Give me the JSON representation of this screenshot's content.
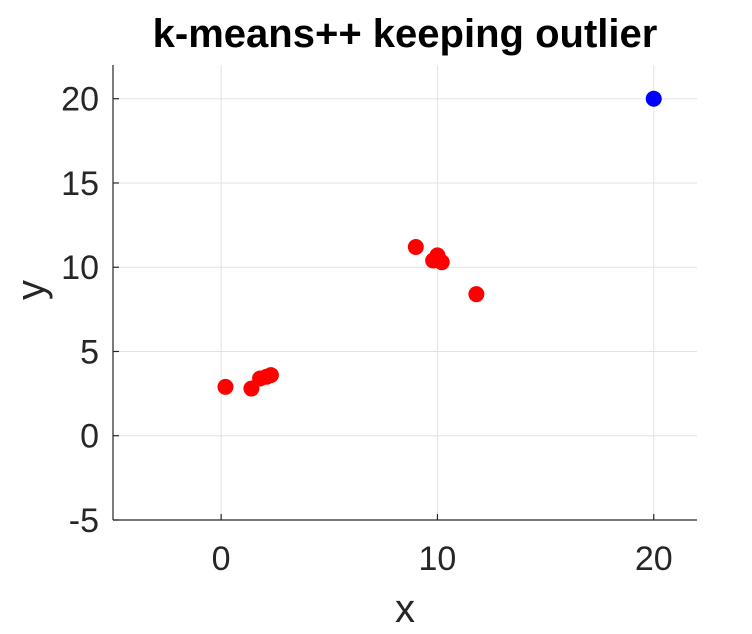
{
  "chart_data": {
    "type": "scatter",
    "title": "k-means++ keeping outlier",
    "xlabel": "x",
    "ylabel": "y",
    "xlim": [
      -5,
      22
    ],
    "ylim": [
      -5,
      22
    ],
    "xticks": [
      0,
      10,
      20
    ],
    "yticks": [
      -5,
      0,
      5,
      10,
      15,
      20
    ],
    "grid": true,
    "series": [
      {
        "color": "#ff0000",
        "points": [
          {
            "x": 0.2,
            "y": 2.9
          },
          {
            "x": 1.4,
            "y": 2.8
          },
          {
            "x": 1.8,
            "y": 3.4
          },
          {
            "x": 2.1,
            "y": 3.5
          },
          {
            "x": 2.3,
            "y": 3.6
          },
          {
            "x": 9.0,
            "y": 11.2
          },
          {
            "x": 9.8,
            "y": 10.4
          },
          {
            "x": 10.0,
            "y": 10.7
          },
          {
            "x": 10.2,
            "y": 10.3
          },
          {
            "x": 11.8,
            "y": 8.4
          }
        ]
      },
      {
        "color": "#0000ff",
        "points": [
          {
            "x": 20.0,
            "y": 20.0
          }
        ]
      }
    ]
  }
}
